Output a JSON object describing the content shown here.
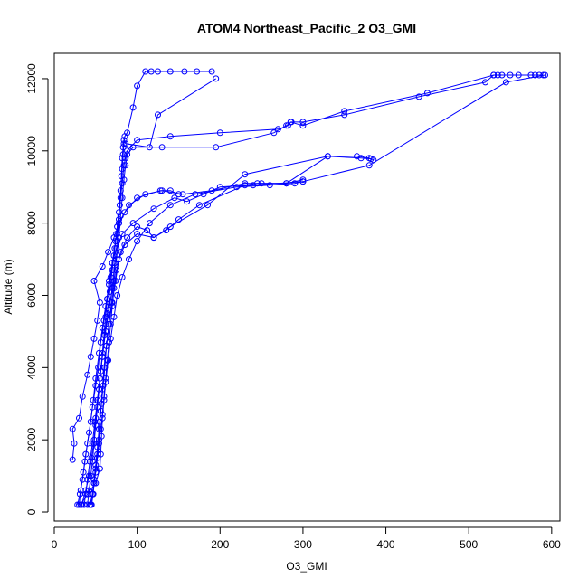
{
  "chart_data": {
    "type": "scatter",
    "title": "ATOM4 Northeast_Pacific_2 O3_GMI",
    "xlabel": "O3_GMI",
    "ylabel": "Altitude (m)",
    "xlim": [
      0,
      610
    ],
    "ylim": [
      -250,
      12700
    ],
    "x_ticks": [
      0,
      100,
      200,
      300,
      400,
      500,
      600
    ],
    "y_ticks": [
      0,
      2000,
      4000,
      6000,
      8000,
      10000,
      12000
    ],
    "grid": false,
    "legend": "none",
    "marker": "open-circle",
    "line_style": "solid",
    "series_color": "#0000ff",
    "series": [
      {
        "points": [
          [
            30,
            200
          ],
          [
            32,
            600
          ],
          [
            35,
            1100
          ],
          [
            38,
            1600
          ],
          [
            42,
            2200
          ],
          [
            46,
            2900
          ],
          [
            50,
            3500
          ],
          [
            53,
            4000
          ],
          [
            56,
            4700
          ],
          [
            60,
            5300
          ],
          [
            64,
            5900
          ],
          [
            68,
            6500
          ],
          [
            72,
            7100
          ],
          [
            75,
            7700
          ],
          [
            78,
            8300
          ],
          [
            80,
            8900
          ],
          [
            82,
            9500
          ],
          [
            83,
            9900
          ],
          [
            84,
            10200
          ],
          [
            85,
            10400
          ],
          [
            88,
            10500
          ],
          [
            95,
            11200
          ],
          [
            100,
            11800
          ],
          [
            110,
            12200
          ],
          [
            117,
            12200
          ],
          [
            125,
            12200
          ],
          [
            140,
            12200
          ],
          [
            157,
            12200
          ],
          [
            172,
            12200
          ],
          [
            190,
            12200
          ]
        ]
      },
      {
        "points": [
          [
            33,
            200
          ],
          [
            38,
            600
          ],
          [
            42,
            1000
          ],
          [
            45,
            1500
          ],
          [
            48,
            2000
          ],
          [
            50,
            2600
          ],
          [
            52,
            3100
          ],
          [
            55,
            3700
          ],
          [
            58,
            4300
          ],
          [
            62,
            5000
          ],
          [
            66,
            5600
          ],
          [
            70,
            6200
          ],
          [
            73,
            6900
          ],
          [
            76,
            7500
          ],
          [
            78,
            8100
          ],
          [
            80,
            8700
          ],
          [
            81,
            9300
          ],
          [
            82,
            9800
          ],
          [
            83,
            10100
          ],
          [
            84,
            10300
          ],
          [
            86,
            10200
          ],
          [
            115,
            10100
          ],
          [
            125,
            11000
          ],
          [
            195,
            12000
          ]
        ]
      },
      {
        "points": [
          [
            28,
            200
          ],
          [
            31,
            500
          ],
          [
            34,
            900
          ],
          [
            37,
            1400
          ],
          [
            40,
            1900
          ],
          [
            44,
            2500
          ],
          [
            47,
            3100
          ],
          [
            50,
            3700
          ],
          [
            54,
            4400
          ],
          [
            58,
            5100
          ],
          [
            62,
            5700
          ],
          [
            66,
            6300
          ],
          [
            70,
            6900
          ],
          [
            74,
            7500
          ],
          [
            78,
            8000
          ],
          [
            90,
            8500
          ],
          [
            110,
            8800
          ],
          [
            130,
            8900
          ],
          [
            155,
            8800
          ],
          [
            190,
            8900
          ],
          [
            230,
            9100
          ],
          [
            250,
            9100
          ],
          [
            280,
            9100
          ],
          [
            300,
            9200
          ]
        ]
      },
      {
        "points": [
          [
            45,
            200
          ],
          [
            47,
            500
          ],
          [
            48,
            800
          ],
          [
            50,
            1200
          ],
          [
            52,
            1600
          ],
          [
            54,
            2000
          ],
          [
            55,
            2500
          ],
          [
            57,
            3000
          ],
          [
            59,
            3500
          ],
          [
            61,
            4000
          ],
          [
            63,
            4600
          ],
          [
            66,
            5200
          ],
          [
            69,
            5800
          ],
          [
            72,
            6400
          ],
          [
            75,
            7000
          ],
          [
            78,
            7600
          ],
          [
            80,
            8200
          ],
          [
            82,
            8700
          ],
          [
            84,
            9200
          ],
          [
            86,
            9600
          ],
          [
            88,
            9900
          ],
          [
            95,
            10100
          ],
          [
            130,
            10100
          ],
          [
            195,
            10100
          ],
          [
            265,
            10500
          ],
          [
            280,
            10700
          ],
          [
            286,
            10800
          ],
          [
            300,
            10800
          ],
          [
            350,
            11000
          ],
          [
            440,
            11500
          ],
          [
            520,
            11900
          ],
          [
            530,
            12100
          ],
          [
            540,
            12100
          ],
          [
            560,
            12100
          ],
          [
            580,
            12100
          ],
          [
            590,
            12100
          ]
        ]
      },
      {
        "points": [
          [
            43,
            200
          ],
          [
            46,
            500
          ],
          [
            48,
            900
          ],
          [
            50,
            1300
          ],
          [
            52,
            1800
          ],
          [
            54,
            2300
          ],
          [
            56,
            2800
          ],
          [
            58,
            3400
          ],
          [
            60,
            4000
          ],
          [
            63,
            4600
          ],
          [
            66,
            5200
          ],
          [
            70,
            5800
          ],
          [
            74,
            6400
          ],
          [
            78,
            7000
          ],
          [
            85,
            7400
          ],
          [
            100,
            7700
          ],
          [
            120,
            7600
          ],
          [
            140,
            7900
          ],
          [
            185,
            8500
          ],
          [
            230,
            9350
          ],
          [
            330,
            9850
          ],
          [
            365,
            9850
          ],
          [
            380,
            9800
          ],
          [
            385,
            9750
          ]
        ]
      },
      {
        "points": [
          [
            32,
            200
          ],
          [
            40,
            500
          ],
          [
            50,
            800
          ],
          [
            55,
            1200
          ],
          [
            56,
            1600
          ],
          [
            57,
            2100
          ],
          [
            58,
            2600
          ],
          [
            60,
            3100
          ],
          [
            62,
            3600
          ],
          [
            65,
            4200
          ],
          [
            68,
            4800
          ],
          [
            72,
            5400
          ],
          [
            76,
            6000
          ],
          [
            82,
            6500
          ],
          [
            90,
            7000
          ],
          [
            100,
            7500
          ],
          [
            115,
            8000
          ],
          [
            140,
            8500
          ],
          [
            170,
            8800
          ],
          [
            220,
            9000
          ],
          [
            260,
            9050
          ],
          [
            290,
            9100
          ],
          [
            300,
            9150
          ],
          [
            380,
            9600
          ],
          [
            545,
            11900
          ],
          [
            592,
            12100
          ]
        ]
      },
      {
        "points": [
          [
            22,
            1450
          ],
          [
            24,
            1900
          ],
          [
            22,
            2300
          ],
          [
            30,
            2600
          ],
          [
            34,
            3200
          ],
          [
            40,
            3800
          ],
          [
            44,
            4300
          ],
          [
            48,
            4800
          ],
          [
            52,
            5300
          ],
          [
            55,
            5800
          ],
          [
            48,
            6400
          ],
          [
            58,
            6800
          ],
          [
            65,
            7200
          ],
          [
            72,
            7600
          ],
          [
            78,
            8000
          ],
          [
            85,
            8300
          ],
          [
            100,
            8700
          ],
          [
            128,
            8900
          ],
          [
            140,
            8900
          ],
          [
            150,
            8800
          ]
        ]
      },
      {
        "points": [
          [
            40,
            200
          ],
          [
            42,
            600
          ],
          [
            44,
            1000
          ],
          [
            46,
            1400
          ],
          [
            48,
            1900
          ],
          [
            50,
            2400
          ],
          [
            52,
            2900
          ],
          [
            54,
            3400
          ],
          [
            56,
            3900
          ],
          [
            58,
            4400
          ],
          [
            60,
            4900
          ],
          [
            62,
            5400
          ],
          [
            64,
            5900
          ],
          [
            66,
            6400
          ],
          [
            70,
            6900
          ],
          [
            75,
            7300
          ],
          [
            82,
            7700
          ],
          [
            95,
            8000
          ],
          [
            120,
            8400
          ],
          [
            145,
            8700
          ],
          [
            160,
            8600
          ],
          [
            180,
            8800
          ],
          [
            200,
            9000
          ],
          [
            240,
            9050
          ],
          [
            300,
            9150
          ]
        ]
      },
      {
        "points": [
          [
            36,
            200
          ],
          [
            38,
            500
          ],
          [
            40,
            900
          ],
          [
            43,
            1400
          ],
          [
            46,
            1900
          ],
          [
            49,
            2500
          ],
          [
            52,
            3100
          ],
          [
            55,
            3700
          ],
          [
            58,
            4300
          ],
          [
            61,
            4900
          ],
          [
            64,
            5500
          ],
          [
            67,
            6100
          ],
          [
            70,
            6700
          ],
          [
            73,
            7300
          ],
          [
            76,
            7900
          ],
          [
            79,
            8500
          ],
          [
            82,
            9100
          ],
          [
            84,
            9600
          ],
          [
            86,
            9800
          ],
          [
            88,
            10000
          ],
          [
            100,
            10300
          ],
          [
            140,
            10400
          ],
          [
            200,
            10500
          ],
          [
            270,
            10600
          ],
          [
            282,
            10700
          ],
          [
            285,
            10800
          ],
          [
            300,
            10700
          ],
          [
            350,
            11100
          ],
          [
            450,
            11600
          ],
          [
            530,
            12100
          ],
          [
            535,
            12100
          ],
          [
            550,
            12100
          ],
          [
            575,
            12100
          ],
          [
            585,
            12100
          ]
        ]
      },
      {
        "points": [
          [
            44,
            200
          ],
          [
            46,
            500
          ],
          [
            48,
            800
          ],
          [
            50,
            1100
          ],
          [
            52,
            1500
          ],
          [
            54,
            1900
          ],
          [
            56,
            2300
          ],
          [
            58,
            2700
          ],
          [
            60,
            3200
          ],
          [
            62,
            3700
          ],
          [
            64,
            4200
          ],
          [
            66,
            4700
          ],
          [
            68,
            5200
          ],
          [
            70,
            5700
          ],
          [
            72,
            6200
          ],
          [
            75,
            6700
          ],
          [
            80,
            7200
          ],
          [
            88,
            7600
          ],
          [
            100,
            7900
          ],
          [
            112,
            7800
          ],
          [
            120,
            7600
          ],
          [
            135,
            7800
          ],
          [
            150,
            8100
          ],
          [
            175,
            8500
          ],
          [
            230,
            9050
          ],
          [
            245,
            9100
          ],
          [
            280,
            9100
          ],
          [
            330,
            9850
          ],
          [
            370,
            9800
          ],
          [
            382,
            9780
          ]
        ]
      }
    ]
  }
}
